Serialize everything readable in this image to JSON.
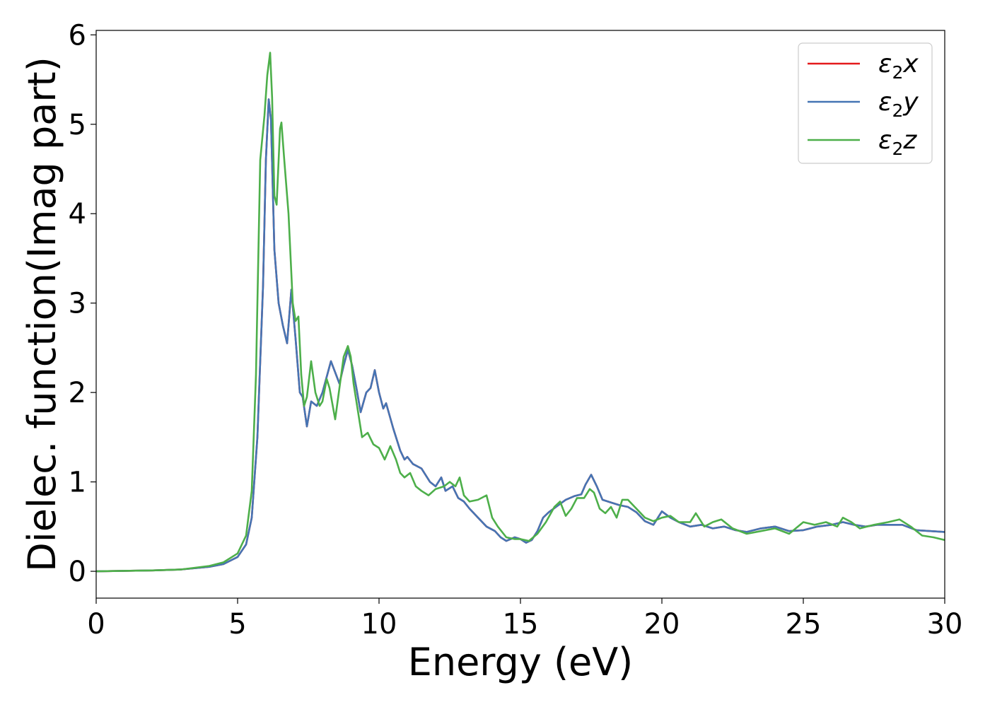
{
  "chart_data": {
    "type": "line",
    "title": "",
    "xlabel": "Energy (eV)",
    "ylabel": "Dielec. function(Imag part)",
    "xlim": [
      0,
      30
    ],
    "ylim": [
      -0.3,
      6.05
    ],
    "xticks": [
      0,
      5,
      10,
      15,
      20,
      25,
      30
    ],
    "yticks": [
      0,
      1,
      2,
      3,
      4,
      5,
      6
    ],
    "grid": false,
    "legend_position": "top-right",
    "series": [
      {
        "name": "ε₂x",
        "legend_base": "ε",
        "legend_sub": "2",
        "legend_suffix": "x",
        "color": "#e41a1c",
        "x": [
          0,
          1,
          2,
          3,
          4,
          4.5,
          5,
          5.3,
          5.5,
          5.7,
          5.9,
          6.0,
          6.1,
          6.18,
          6.3,
          6.45,
          6.6,
          6.75,
          6.9,
          7.05,
          7.2,
          7.3,
          7.45,
          7.6,
          7.8,
          8.0,
          8.3,
          8.6,
          8.75,
          8.9,
          9.05,
          9.2,
          9.35,
          9.55,
          9.7,
          9.85,
          10.0,
          10.15,
          10.25,
          10.5,
          10.75,
          10.9,
          11.0,
          11.2,
          11.5,
          11.8,
          12.0,
          12.2,
          12.35,
          12.6,
          12.8,
          13.0,
          13.2,
          13.5,
          13.8,
          14.1,
          14.3,
          14.5,
          14.8,
          15.0,
          15.2,
          15.4,
          15.6,
          15.8,
          16.0,
          16.3,
          16.6,
          16.9,
          17.15,
          17.3,
          17.5,
          17.7,
          17.9,
          18.2,
          18.5,
          18.8,
          19.1,
          19.4,
          19.7,
          20.0,
          20.3,
          20.6,
          21.0,
          21.4,
          21.8,
          22.2,
          22.6,
          23.0,
          23.5,
          24.0,
          24.5,
          25.0,
          25.5,
          26.0,
          26.4,
          26.8,
          27.2,
          27.6,
          28.0,
          28.5,
          29.0,
          29.5,
          30.0
        ],
        "y": [
          0.0,
          0.005,
          0.01,
          0.02,
          0.05,
          0.08,
          0.16,
          0.3,
          0.6,
          1.5,
          3.2,
          4.6,
          5.28,
          5.05,
          3.6,
          3.0,
          2.75,
          2.55,
          3.15,
          2.6,
          2.0,
          1.95,
          1.62,
          1.9,
          1.85,
          2.0,
          2.35,
          2.1,
          2.3,
          2.48,
          2.3,
          2.05,
          1.78,
          2.0,
          2.05,
          2.25,
          2.0,
          1.82,
          1.88,
          1.6,
          1.35,
          1.25,
          1.28,
          1.2,
          1.15,
          1.0,
          0.95,
          1.05,
          0.9,
          0.95,
          0.82,
          0.78,
          0.7,
          0.6,
          0.5,
          0.45,
          0.38,
          0.34,
          0.38,
          0.36,
          0.32,
          0.35,
          0.45,
          0.6,
          0.66,
          0.73,
          0.8,
          0.84,
          0.86,
          0.97,
          1.08,
          0.95,
          0.8,
          0.77,
          0.74,
          0.72,
          0.66,
          0.56,
          0.52,
          0.67,
          0.6,
          0.55,
          0.5,
          0.52,
          0.48,
          0.5,
          0.46,
          0.44,
          0.48,
          0.5,
          0.45,
          0.46,
          0.5,
          0.52,
          0.55,
          0.52,
          0.5,
          0.52,
          0.52,
          0.52,
          0.46,
          0.45,
          0.44
        ]
      },
      {
        "name": "ε₂y",
        "legend_base": "ε",
        "legend_sub": "2",
        "legend_suffix": "y",
        "color": "#4575b4",
        "x": [
          0,
          1,
          2,
          3,
          4,
          4.5,
          5,
          5.3,
          5.5,
          5.7,
          5.9,
          6.0,
          6.1,
          6.18,
          6.3,
          6.45,
          6.6,
          6.75,
          6.9,
          7.05,
          7.2,
          7.3,
          7.45,
          7.6,
          7.8,
          8.0,
          8.3,
          8.6,
          8.75,
          8.9,
          9.05,
          9.2,
          9.35,
          9.55,
          9.7,
          9.85,
          10.0,
          10.15,
          10.25,
          10.5,
          10.75,
          10.9,
          11.0,
          11.2,
          11.5,
          11.8,
          12.0,
          12.2,
          12.35,
          12.6,
          12.8,
          13.0,
          13.2,
          13.5,
          13.8,
          14.1,
          14.3,
          14.5,
          14.8,
          15.0,
          15.2,
          15.4,
          15.6,
          15.8,
          16.0,
          16.3,
          16.6,
          16.9,
          17.15,
          17.3,
          17.5,
          17.7,
          17.9,
          18.2,
          18.5,
          18.8,
          19.1,
          19.4,
          19.7,
          20.0,
          20.3,
          20.6,
          21.0,
          21.4,
          21.8,
          22.2,
          22.6,
          23.0,
          23.5,
          24.0,
          24.5,
          25.0,
          25.5,
          26.0,
          26.4,
          26.8,
          27.2,
          27.6,
          28.0,
          28.5,
          29.0,
          29.5,
          30.0
        ],
        "y": [
          0.0,
          0.005,
          0.01,
          0.02,
          0.05,
          0.08,
          0.16,
          0.3,
          0.6,
          1.5,
          3.2,
          4.6,
          5.28,
          5.05,
          3.6,
          3.0,
          2.75,
          2.55,
          3.15,
          2.6,
          2.0,
          1.95,
          1.62,
          1.9,
          1.85,
          2.0,
          2.35,
          2.1,
          2.3,
          2.48,
          2.3,
          2.05,
          1.78,
          2.0,
          2.05,
          2.25,
          2.0,
          1.82,
          1.88,
          1.6,
          1.35,
          1.25,
          1.28,
          1.2,
          1.15,
          1.0,
          0.95,
          1.05,
          0.9,
          0.95,
          0.82,
          0.78,
          0.7,
          0.6,
          0.5,
          0.45,
          0.38,
          0.34,
          0.38,
          0.36,
          0.32,
          0.35,
          0.45,
          0.6,
          0.66,
          0.73,
          0.8,
          0.84,
          0.86,
          0.97,
          1.08,
          0.95,
          0.8,
          0.77,
          0.74,
          0.72,
          0.66,
          0.56,
          0.52,
          0.67,
          0.6,
          0.55,
          0.5,
          0.52,
          0.48,
          0.5,
          0.46,
          0.44,
          0.48,
          0.5,
          0.45,
          0.46,
          0.5,
          0.52,
          0.55,
          0.52,
          0.5,
          0.52,
          0.52,
          0.52,
          0.46,
          0.45,
          0.44
        ]
      },
      {
        "name": "ε₂z",
        "legend_base": "ε",
        "legend_sub": "2",
        "legend_suffix": "z",
        "color": "#4daf4a",
        "x": [
          0,
          1,
          2,
          3,
          4,
          4.5,
          5,
          5.3,
          5.5,
          5.65,
          5.8,
          5.95,
          6.05,
          6.15,
          6.22,
          6.3,
          6.38,
          6.5,
          6.55,
          6.65,
          6.8,
          6.95,
          7.05,
          7.15,
          7.25,
          7.35,
          7.45,
          7.6,
          7.75,
          7.9,
          8.0,
          8.15,
          8.25,
          8.45,
          8.6,
          8.75,
          8.9,
          9.0,
          9.1,
          9.25,
          9.4,
          9.6,
          9.8,
          10.0,
          10.2,
          10.4,
          10.6,
          10.75,
          10.9,
          11.1,
          11.3,
          11.5,
          11.75,
          12.0,
          12.3,
          12.5,
          12.7,
          12.85,
          13.0,
          13.2,
          13.5,
          13.8,
          14.0,
          14.2,
          14.5,
          14.8,
          15.0,
          15.3,
          15.6,
          15.9,
          16.2,
          16.4,
          16.6,
          16.8,
          17.0,
          17.25,
          17.45,
          17.6,
          17.8,
          18.0,
          18.2,
          18.4,
          18.6,
          18.8,
          19.1,
          19.4,
          19.7,
          20.0,
          20.3,
          20.6,
          21.0,
          21.2,
          21.5,
          21.8,
          22.1,
          22.5,
          23.0,
          23.5,
          24.0,
          24.5,
          25.0,
          25.4,
          25.8,
          26.2,
          26.4,
          26.7,
          27.0,
          27.5,
          28.0,
          28.4,
          28.8,
          29.2,
          29.6,
          30.0
        ],
        "y": [
          0.0,
          0.005,
          0.01,
          0.02,
          0.06,
          0.1,
          0.2,
          0.4,
          0.9,
          2.2,
          4.6,
          5.1,
          5.55,
          5.8,
          5.3,
          4.2,
          4.1,
          4.95,
          5.02,
          4.6,
          4.0,
          3.0,
          2.8,
          2.85,
          2.2,
          1.85,
          1.95,
          2.35,
          2.0,
          1.85,
          1.9,
          2.15,
          2.05,
          1.7,
          2.05,
          2.4,
          2.52,
          2.4,
          2.1,
          1.8,
          1.5,
          1.55,
          1.42,
          1.38,
          1.25,
          1.4,
          1.25,
          1.1,
          1.05,
          1.1,
          0.95,
          0.9,
          0.85,
          0.92,
          0.95,
          1.0,
          0.95,
          1.05,
          0.85,
          0.78,
          0.8,
          0.85,
          0.6,
          0.5,
          0.38,
          0.36,
          0.36,
          0.34,
          0.42,
          0.55,
          0.72,
          0.78,
          0.62,
          0.7,
          0.82,
          0.82,
          0.92,
          0.88,
          0.7,
          0.65,
          0.72,
          0.6,
          0.8,
          0.8,
          0.7,
          0.6,
          0.56,
          0.6,
          0.62,
          0.55,
          0.55,
          0.65,
          0.5,
          0.55,
          0.58,
          0.48,
          0.42,
          0.45,
          0.48,
          0.42,
          0.55,
          0.52,
          0.55,
          0.5,
          0.6,
          0.55,
          0.48,
          0.52,
          0.55,
          0.58,
          0.5,
          0.4,
          0.38,
          0.35
        ]
      }
    ]
  }
}
